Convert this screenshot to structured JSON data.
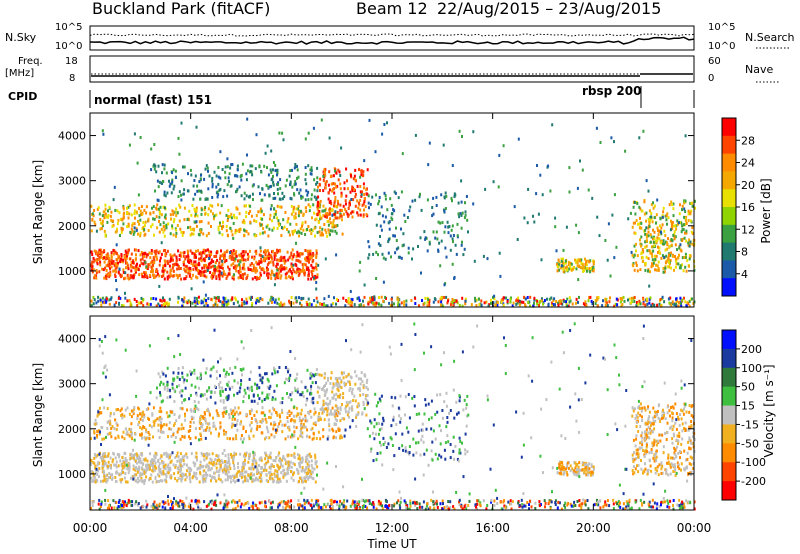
{
  "header": {
    "title": "Buckland Park (fitACF)",
    "beam_label": "Beam 12",
    "date_range": "22/Aug/2015 – 23/Aug/2015"
  },
  "summary_panels": {
    "nsky_label": "N.Sky",
    "nsky_ticks": [
      "10^5",
      "10^0"
    ],
    "nsearch_label": "N.Search",
    "nsearch_ticks": [
      "10^5",
      "10^0"
    ],
    "freq_label": "Freq.",
    "freq_unit": "[MHz]",
    "freq_ticks": [
      "18",
      "8"
    ],
    "nave_label": "Nave",
    "nave_ticks": [
      "60",
      "0"
    ],
    "cpid_label": "CPID",
    "cpid_modes": [
      {
        "name": "normal (fast) 151",
        "start_hour": 0
      },
      {
        "name": "rbsp 200",
        "start_hour": 22
      }
    ]
  },
  "chart_data": [
    {
      "type": "heatmap",
      "title": "",
      "xlabel": "Time UT",
      "ylabel": "Slant Range [km]",
      "x_ticks": [
        "00:00",
        "04:00",
        "08:00",
        "12:00",
        "16:00",
        "20:00",
        "00:00"
      ],
      "x_hours": [
        0,
        4,
        8,
        12,
        16,
        20,
        24
      ],
      "y_ticks": [
        1000,
        2000,
        3000,
        4000
      ],
      "ylim": [
        200,
        4500
      ],
      "colorbar_label": "Power [dB]",
      "colorbar_ticks": [
        "28",
        "24",
        "20",
        "16",
        "12",
        "8",
        "4"
      ],
      "colorbar_values": [
        28,
        24,
        20,
        16,
        12,
        8,
        4
      ],
      "colors": [
        "#ff0000",
        "#ff4400",
        "#ff8c00",
        "#f5a800",
        "#e8e000",
        "#8fd400",
        "#3aa040",
        "#207a70",
        "#1b5aa8",
        "#0010ff"
      ]
    },
    {
      "type": "heatmap",
      "title": "",
      "xlabel": "Time UT",
      "ylabel": "Slant Range [km]",
      "x_ticks": [
        "00:00",
        "04:00",
        "08:00",
        "12:00",
        "16:00",
        "20:00",
        "00:00"
      ],
      "y_ticks": [
        1000,
        2000,
        3000,
        4000
      ],
      "ylim": [
        200,
        4500
      ],
      "colorbar_label": "Velocity [m s⁻¹]",
      "colorbar_ticks": [
        "200",
        "100",
        "50",
        "15",
        "-15",
        "-50",
        "-100",
        "-200"
      ],
      "colors": [
        "#0010ff",
        "#1b3aa0",
        "#2f7a3a",
        "#3fbf3f",
        "#c0c0c0",
        "#f0b020",
        "#ff8c00",
        "#ff4400",
        "#ff0000"
      ]
    }
  ]
}
